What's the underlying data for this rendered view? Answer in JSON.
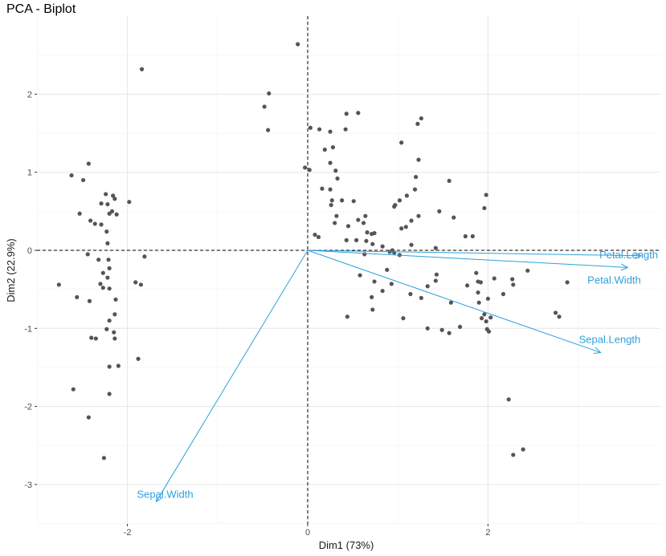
{
  "chart_data": {
    "type": "scatter",
    "title": "PCA - Biplot",
    "xlabel": "Dim1 (73%)",
    "ylabel": "Dim2 (22.9%)",
    "xlim": [
      -3.0,
      3.95
    ],
    "ylim": [
      -3.5,
      2.78
    ],
    "x_ticks": [
      -2,
      0,
      2
    ],
    "x_tick_labels": [
      "-2",
      "0",
      "2"
    ],
    "y_ticks": [
      -3,
      -2,
      -1,
      0,
      1,
      2
    ],
    "y_tick_labels": [
      "-3",
      "-2",
      "-1",
      "0",
      "1",
      "2"
    ],
    "grid": true,
    "reference_lines": {
      "x": 0,
      "y": 0,
      "style": "dashed"
    },
    "point_color": "#555555",
    "arrow_color": "#2fa0dc",
    "points": [
      [
        -0.11,
        2.64
      ],
      [
        -1.84,
        2.32
      ],
      [
        -0.43,
        2.01
      ],
      [
        -0.48,
        1.84
      ],
      [
        -0.44,
        1.54
      ],
      [
        0.03,
        1.57
      ],
      [
        0.13,
        1.55
      ],
      [
        0.25,
        1.52
      ],
      [
        0.42,
        1.55
      ],
      [
        0.43,
        1.75
      ],
      [
        0.56,
        1.76
      ],
      [
        1.26,
        1.69
      ],
      [
        1.22,
        1.62
      ],
      [
        1.04,
        1.38
      ],
      [
        0.19,
        1.29
      ],
      [
        0.28,
        1.32
      ],
      [
        0.25,
        1.12
      ],
      [
        0.31,
        1.02
      ],
      [
        -0.03,
        1.06
      ],
      [
        0.02,
        1.03
      ],
      [
        1.23,
        1.16
      ],
      [
        1.2,
        0.94
      ],
      [
        0.33,
        0.92
      ],
      [
        0.16,
        0.79
      ],
      [
        0.25,
        0.78
      ],
      [
        0.38,
        0.64
      ],
      [
        0.27,
        0.64
      ],
      [
        1.57,
        0.89
      ],
      [
        1.1,
        0.7
      ],
      [
        1.19,
        0.78
      ],
      [
        1.02,
        0.64
      ],
      [
        0.97,
        0.58
      ],
      [
        1.98,
        0.71
      ],
      [
        1.96,
        0.54
      ],
      [
        0.26,
        0.58
      ],
      [
        0.51,
        0.63
      ],
      [
        0.96,
        0.56
      ],
      [
        0.32,
        0.44
      ],
      [
        0.56,
        0.39
      ],
      [
        0.64,
        0.44
      ],
      [
        1.23,
        0.44
      ],
      [
        1.46,
        0.5
      ],
      [
        1.62,
        0.42
      ],
      [
        0.62,
        0.35
      ],
      [
        0.45,
        0.31
      ],
      [
        0.3,
        0.35
      ],
      [
        1.15,
        0.38
      ],
      [
        1.09,
        0.3
      ],
      [
        1.04,
        0.28
      ],
      [
        0.66,
        0.23
      ],
      [
        0.71,
        0.21
      ],
      [
        0.74,
        0.22
      ],
      [
        0.08,
        0.2
      ],
      [
        0.12,
        0.17
      ],
      [
        0.43,
        0.13
      ],
      [
        0.54,
        0.13
      ],
      [
        0.65,
        0.12
      ],
      [
        0.72,
        0.08
      ],
      [
        1.15,
        0.07
      ],
      [
        0.83,
        0.05
      ],
      [
        1.42,
        0.03
      ],
      [
        1.75,
        0.18
      ],
      [
        1.83,
        0.18
      ],
      [
        0.94,
        0.0
      ],
      [
        0.63,
        -0.05
      ],
      [
        0.91,
        -0.02
      ],
      [
        0.96,
        -0.03
      ],
      [
        1.02,
        -0.06
      ],
      [
        0.88,
        -0.25
      ],
      [
        0.58,
        -0.32
      ],
      [
        0.74,
        -0.4
      ],
      [
        0.93,
        -0.43
      ],
      [
        1.43,
        -0.31
      ],
      [
        1.42,
        -0.39
      ],
      [
        1.87,
        -0.29
      ],
      [
        1.89,
        -0.4
      ],
      [
        1.92,
        -0.41
      ],
      [
        1.33,
        -0.46
      ],
      [
        1.77,
        -0.45
      ],
      [
        2.07,
        -0.36
      ],
      [
        2.27,
        -0.37
      ],
      [
        2.44,
        -0.26
      ],
      [
        2.28,
        -0.44
      ],
      [
        2.88,
        -0.41
      ],
      [
        0.71,
        -0.6
      ],
      [
        0.72,
        -0.76
      ],
      [
        0.83,
        -0.52
      ],
      [
        1.14,
        -0.56
      ],
      [
        1.26,
        -0.61
      ],
      [
        1.59,
        -0.67
      ],
      [
        1.89,
        -0.54
      ],
      [
        1.9,
        -0.67
      ],
      [
        2.17,
        -0.56
      ],
      [
        1.96,
        -0.82
      ],
      [
        2.0,
        -0.62
      ],
      [
        0.44,
        -0.85
      ],
      [
        1.06,
        -0.87
      ],
      [
        1.33,
        -1.0
      ],
      [
        1.49,
        -1.02
      ],
      [
        1.57,
        -1.06
      ],
      [
        1.69,
        -0.98
      ],
      [
        1.93,
        -0.87
      ],
      [
        1.98,
        -0.91
      ],
      [
        2.03,
        -0.86
      ],
      [
        1.99,
        -1.01
      ],
      [
        2.01,
        -1.04
      ],
      [
        2.75,
        -0.8
      ],
      [
        2.79,
        -0.85
      ],
      [
        2.23,
        -1.91
      ],
      [
        2.28,
        -2.62
      ],
      [
        2.39,
        -2.55
      ],
      [
        -2.62,
        0.96
      ],
      [
        -2.43,
        1.11
      ],
      [
        -2.49,
        0.9
      ],
      [
        -2.24,
        0.72
      ],
      [
        -2.14,
        0.66
      ],
      [
        -2.16,
        0.7
      ],
      [
        -2.22,
        0.59
      ],
      [
        -2.29,
        0.6
      ],
      [
        -1.98,
        0.62
      ],
      [
        -2.53,
        0.47
      ],
      [
        -2.2,
        0.47
      ],
      [
        -2.17,
        0.5
      ],
      [
        -2.12,
        0.46
      ],
      [
        -2.41,
        0.38
      ],
      [
        -2.36,
        0.34
      ],
      [
        -2.29,
        0.33
      ],
      [
        -2.23,
        0.24
      ],
      [
        -2.22,
        0.09
      ],
      [
        -2.44,
        -0.05
      ],
      [
        -2.32,
        -0.12
      ],
      [
        -2.21,
        -0.12
      ],
      [
        -1.81,
        -0.08
      ],
      [
        -2.2,
        -0.23
      ],
      [
        -2.27,
        -0.29
      ],
      [
        -2.22,
        -0.35
      ],
      [
        -2.3,
        -0.43
      ],
      [
        -2.27,
        -0.48
      ],
      [
        -2.2,
        -0.49
      ],
      [
        -1.91,
        -0.41
      ],
      [
        -1.85,
        -0.44
      ],
      [
        -2.76,
        -0.44
      ],
      [
        -2.56,
        -0.6
      ],
      [
        -2.42,
        -0.65
      ],
      [
        -2.13,
        -0.63
      ],
      [
        -2.14,
        -0.82
      ],
      [
        -2.2,
        -0.9
      ],
      [
        -2.23,
        -1.01
      ],
      [
        -2.15,
        -1.05
      ],
      [
        -2.4,
        -1.12
      ],
      [
        -2.35,
        -1.13
      ],
      [
        -2.14,
        -1.13
      ],
      [
        -2.1,
        -1.48
      ],
      [
        -2.2,
        -1.49
      ],
      [
        -1.88,
        -1.39
      ],
      [
        -2.6,
        -1.78
      ],
      [
        -2.2,
        -1.84
      ],
      [
        -2.43,
        -2.14
      ],
      [
        -2.26,
        -2.66
      ]
    ],
    "variables": [
      {
        "name": "Petal.Length",
        "x": 3.7,
        "y": -0.07
      },
      {
        "name": "Petal.Width",
        "x": 3.55,
        "y": -0.22
      },
      {
        "name": "Sepal.Length",
        "x": 3.25,
        "y": -1.31
      },
      {
        "name": "Sepal.Width",
        "x": -1.68,
        "y": -3.22
      }
    ]
  }
}
